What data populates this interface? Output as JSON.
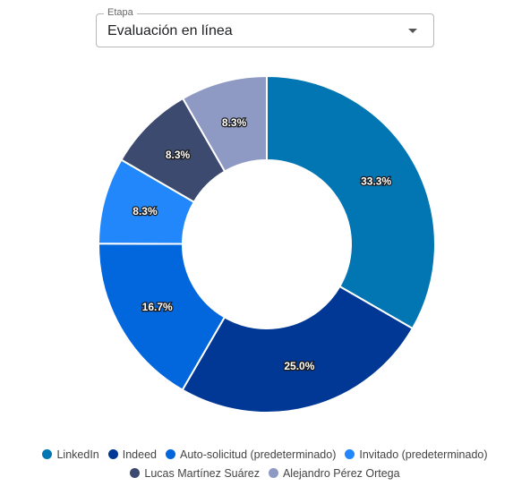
{
  "stage_select": {
    "label": "Etapa",
    "value": "Evaluación en línea",
    "icon": "chevron-down-icon"
  },
  "chart_data": {
    "type": "pie",
    "variant": "donut",
    "title": "",
    "slices": [
      {
        "name": "LinkedIn",
        "value": 33.3,
        "label": "33.3%",
        "color": "#0275b3"
      },
      {
        "name": "Indeed",
        "value": 25.0,
        "label": "25.0%",
        "color": "#013895"
      },
      {
        "name": "Auto-solicitud (predeterminado)",
        "value": 16.7,
        "label": "16.7%",
        "color": "#0267dd"
      },
      {
        "name": "Invitado (predeterminado)",
        "value": 8.3,
        "label": "8.3%",
        "color": "#2187fb"
      },
      {
        "name": "Lucas Martínez Suárez",
        "value": 8.3,
        "label": "8.3%",
        "color": "#3d4a70"
      },
      {
        "name": "Alejandro Pérez Ortega",
        "value": 8.3,
        "label": "8.3%",
        "color": "#8f9ac4"
      }
    ],
    "legend_position": "bottom"
  }
}
